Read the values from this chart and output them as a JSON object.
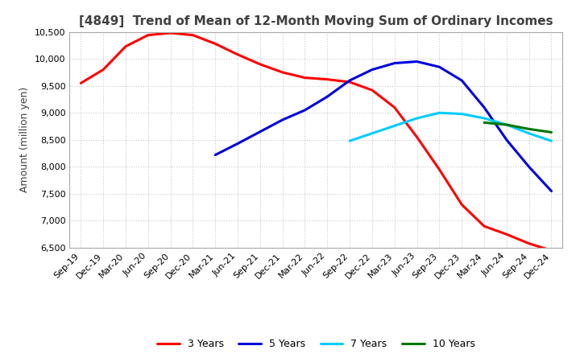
{
  "title": "[4849]  Trend of Mean of 12-Month Moving Sum of Ordinary Incomes",
  "ylabel": "Amount (million yen)",
  "ylim": [
    6500,
    10500
  ],
  "yticks": [
    6500,
    7000,
    7500,
    8000,
    8500,
    9000,
    9500,
    10000,
    10500
  ],
  "x_labels": [
    "Sep-19",
    "Dec-19",
    "Mar-20",
    "Jun-20",
    "Sep-20",
    "Dec-20",
    "Mar-21",
    "Jun-21",
    "Sep-21",
    "Dec-21",
    "Mar-22",
    "Jun-22",
    "Sep-22",
    "Dec-22",
    "Mar-23",
    "Jun-23",
    "Sep-23",
    "Dec-23",
    "Mar-24",
    "Jun-24",
    "Sep-24",
    "Dec-24"
  ],
  "series": {
    "3 Years": {
      "color": "#ff0000",
      "data": [
        9550,
        9800,
        10230,
        10440,
        10480,
        10440,
        10280,
        10080,
        9900,
        9750,
        9650,
        9620,
        9570,
        9420,
        9100,
        8550,
        7950,
        7300,
        6900,
        6750,
        6580,
        6450
      ]
    },
    "5 Years": {
      "color": "#0000dd",
      "data": [
        null,
        null,
        null,
        null,
        null,
        null,
        8220,
        8430,
        8650,
        8870,
        9050,
        9300,
        9600,
        9800,
        9920,
        9950,
        9850,
        9600,
        9100,
        8500,
        8000,
        7550
      ]
    },
    "7 Years": {
      "color": "#00ccff",
      "data": [
        null,
        null,
        null,
        null,
        null,
        null,
        null,
        null,
        null,
        null,
        null,
        null,
        8480,
        8620,
        8760,
        8900,
        9000,
        8980,
        8900,
        8780,
        8620,
        8480
      ]
    },
    "10 Years": {
      "color": "#007700",
      "data": [
        null,
        null,
        null,
        null,
        null,
        null,
        null,
        null,
        null,
        null,
        null,
        null,
        null,
        null,
        null,
        null,
        null,
        null,
        8820,
        8780,
        8700,
        8640
      ]
    }
  },
  "background_color": "#ffffff",
  "grid_color": "#c8c8c8",
  "title_color": "#404040",
  "title_fontsize": 11,
  "tick_fontsize": 8,
  "label_fontsize": 9,
  "linewidth": 2.2
}
